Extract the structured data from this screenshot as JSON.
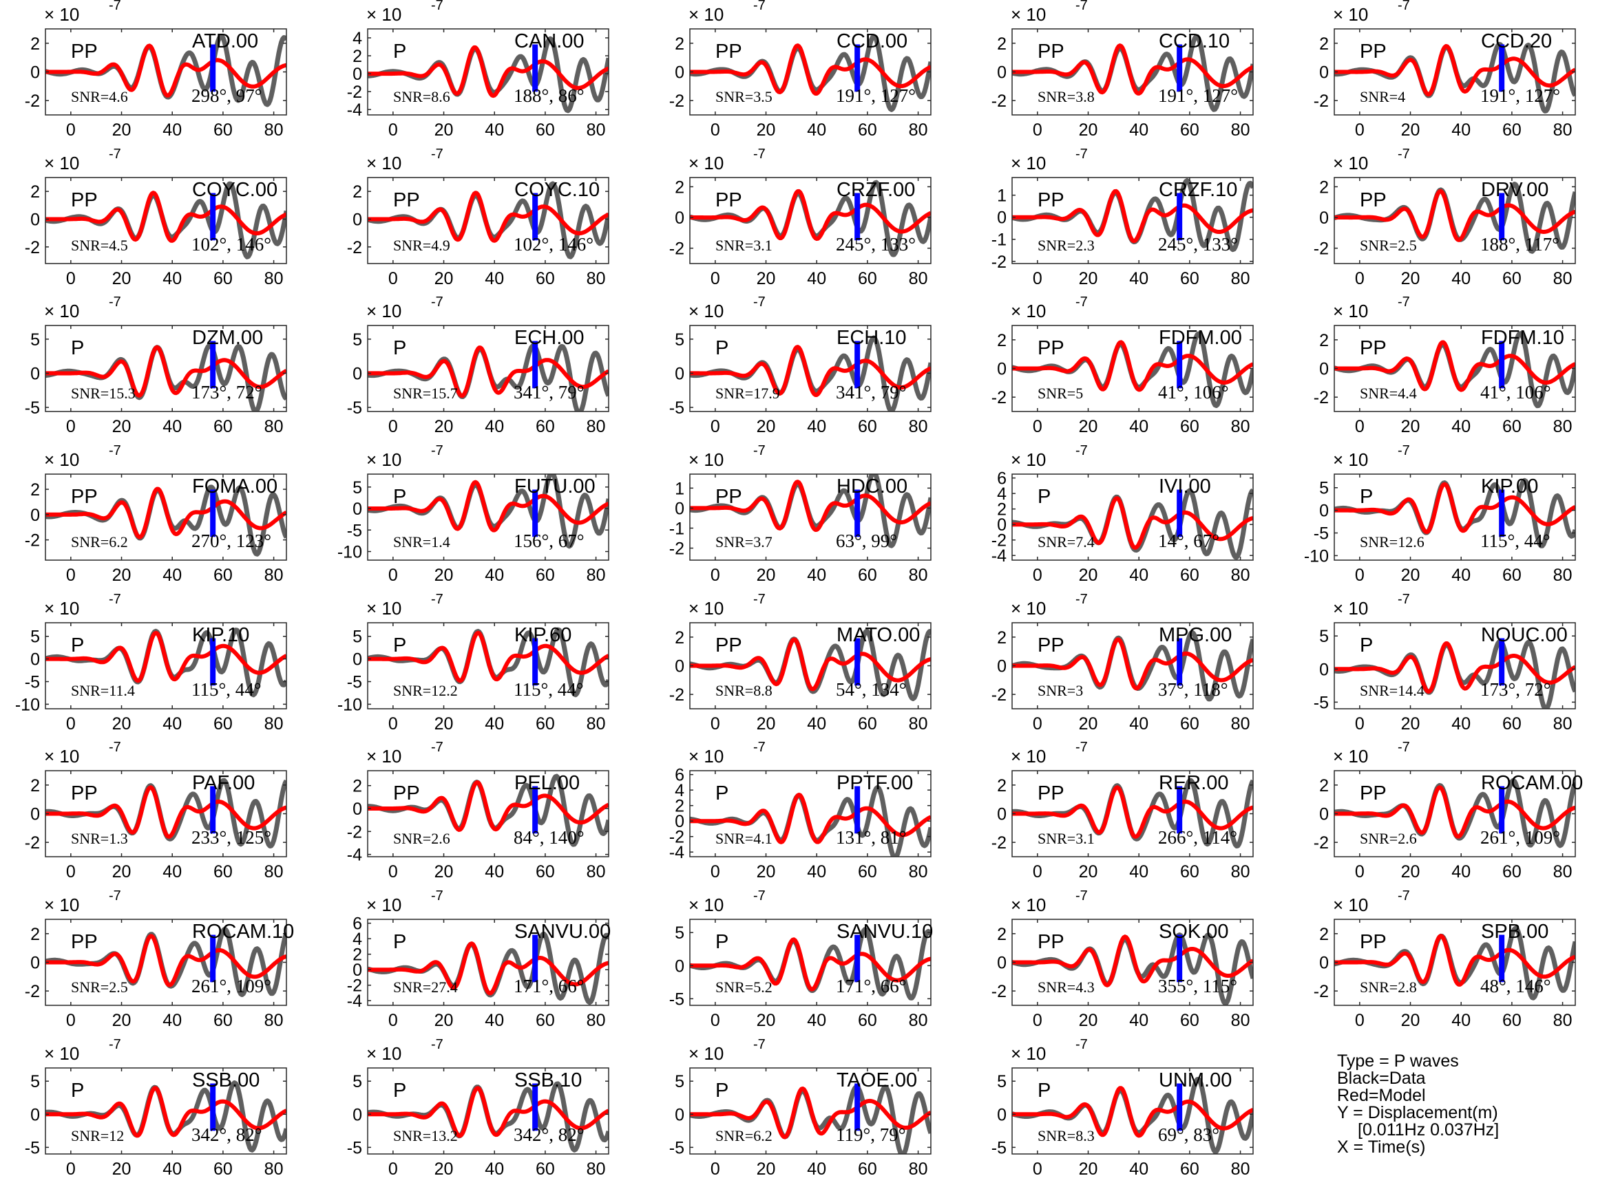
{
  "figure": {
    "scale_prefix": "× 10",
    "scale_exponent": "-7",
    "xticks": [
      "0",
      "20",
      "40",
      "60",
      "80"
    ],
    "xlim": [
      -10,
      85
    ],
    "colors": {
      "data": "#5f5f5f",
      "model": "#ff0000",
      "marker": "#0000ff",
      "axis": "#262626"
    }
  },
  "chart_data": [
    {
      "station": "ATD.00",
      "phase": "PP",
      "snr": "SNR=4.6",
      "azimuth": "298°",
      "distance": "97°",
      "yticks": [
        "-2",
        "0",
        "2"
      ],
      "ylim": [
        -3,
        3
      ]
    },
    {
      "station": "CAN.00",
      "phase": "P",
      "snr": "SNR=8.6",
      "azimuth": "188°",
      "distance": "86°",
      "yticks": [
        "-4",
        "-2",
        "0",
        "2",
        "4"
      ],
      "ylim": [
        -4.6,
        5
      ]
    },
    {
      "station": "CCD.00",
      "phase": "PP",
      "snr": "SNR=3.5",
      "azimuth": "191°",
      "distance": "127°",
      "yticks": [
        "-2",
        "0",
        "2"
      ],
      "ylim": [
        -3,
        3
      ]
    },
    {
      "station": "CCD.10",
      "phase": "PP",
      "snr": "SNR=3.8",
      "azimuth": "191°",
      "distance": "127°",
      "yticks": [
        "-2",
        "0",
        "2"
      ],
      "ylim": [
        -3,
        3
      ]
    },
    {
      "station": "CCD.20",
      "phase": "PP",
      "snr": "SNR=4",
      "azimuth": "191°",
      "distance": "127°",
      "yticks": [
        "-2",
        "0",
        "2"
      ],
      "ylim": [
        -3,
        3
      ]
    },
    {
      "station": "COYC.00",
      "phase": "PP",
      "snr": "SNR=4.5",
      "azimuth": "102°",
      "distance": "146°",
      "yticks": [
        "-2",
        "0",
        "2"
      ],
      "ylim": [
        -3.2,
        3
      ]
    },
    {
      "station": "COYC.10",
      "phase": "PP",
      "snr": "SNR=4.9",
      "azimuth": "102°",
      "distance": "146°",
      "yticks": [
        "-2",
        "0",
        "2"
      ],
      "ylim": [
        -3.2,
        3
      ]
    },
    {
      "station": "CRZF.00",
      "phase": "PP",
      "snr": "SNR=3.1",
      "azimuth": "245°",
      "distance": "133°",
      "yticks": [
        "-2",
        "0",
        "2"
      ],
      "ylim": [
        -3,
        2.6
      ]
    },
    {
      "station": "CRZF.10",
      "phase": "PP",
      "snr": "SNR=2.3",
      "azimuth": "245°",
      "distance": "133°",
      "yticks": [
        "-2",
        "-1",
        "0",
        "1"
      ],
      "ylim": [
        -2.1,
        1.8
      ]
    },
    {
      "station": "DRV.00",
      "phase": "PP",
      "snr": "SNR=2.5",
      "azimuth": "188°",
      "distance": "117°",
      "yticks": [
        "-2",
        "0",
        "2"
      ],
      "ylim": [
        -3,
        2.6
      ]
    },
    {
      "station": "DZM.00",
      "phase": "P",
      "snr": "SNR=15.3",
      "azimuth": "173°",
      "distance": "72°",
      "yticks": [
        "-5",
        "0",
        "5"
      ],
      "ylim": [
        -5.6,
        7
      ]
    },
    {
      "station": "ECH.00",
      "phase": "P",
      "snr": "SNR=15.7",
      "azimuth": "341°",
      "distance": "79°",
      "yticks": [
        "-5",
        "0",
        "5"
      ],
      "ylim": [
        -5.6,
        7
      ]
    },
    {
      "station": "ECH.10",
      "phase": "P",
      "snr": "SNR=17.9",
      "azimuth": "341°",
      "distance": "79°",
      "yticks": [
        "-5",
        "0",
        "5"
      ],
      "ylim": [
        -5.6,
        7
      ]
    },
    {
      "station": "FDFM.00",
      "phase": "PP",
      "snr": "SNR=5",
      "azimuth": "41°",
      "distance": "106°",
      "yticks": [
        "-2",
        "0",
        "2"
      ],
      "ylim": [
        -3,
        3
      ]
    },
    {
      "station": "FDFM.10",
      "phase": "PP",
      "snr": "SNR=4.4",
      "azimuth": "41°",
      "distance": "106°",
      "yticks": [
        "-2",
        "0",
        "2"
      ],
      "ylim": [
        -3,
        3
      ]
    },
    {
      "station": "FOMA.00",
      "phase": "PP",
      "snr": "SNR=6.2",
      "azimuth": "270°",
      "distance": "123°",
      "yticks": [
        "-2",
        "0",
        "2"
      ],
      "ylim": [
        -3.6,
        3.2
      ]
    },
    {
      "station": "FUTU.00",
      "phase": "P",
      "snr": "SNR=1.4",
      "azimuth": "156°",
      "distance": "67°",
      "yticks": [
        "-10",
        "-5",
        "0",
        "5"
      ],
      "ylim": [
        -12,
        8
      ]
    },
    {
      "station": "HDC.00",
      "phase": "PP",
      "snr": "SNR=3.7",
      "azimuth": "63°",
      "distance": "99°",
      "yticks": [
        "-2",
        "-1",
        "0",
        "1"
      ],
      "ylim": [
        -2.6,
        1.7
      ]
    },
    {
      "station": "IVI.00",
      "phase": "P",
      "snr": "SNR=7.4",
      "azimuth": "14°",
      "distance": "67°",
      "yticks": [
        "-4",
        "-2",
        "0",
        "2",
        "4",
        "6"
      ],
      "ylim": [
        -4.6,
        6.5
      ]
    },
    {
      "station": "KIP.00",
      "phase": "P",
      "snr": "SNR=12.6",
      "azimuth": "115°",
      "distance": "44°",
      "yticks": [
        "-10",
        "-5",
        "0",
        "5"
      ],
      "ylim": [
        -11,
        8
      ]
    },
    {
      "station": "KIP.10",
      "phase": "P",
      "snr": "SNR=11.4",
      "azimuth": "115°",
      "distance": "44°",
      "yticks": [
        "-10",
        "-5",
        "0",
        "5"
      ],
      "ylim": [
        -11,
        8
      ]
    },
    {
      "station": "KIP.60",
      "phase": "P",
      "snr": "SNR=12.2",
      "azimuth": "115°",
      "distance": "44°",
      "yticks": [
        "-10",
        "-5",
        "0",
        "5"
      ],
      "ylim": [
        -11,
        8
      ]
    },
    {
      "station": "MATO.00",
      "phase": "PP",
      "snr": "SNR=8.8",
      "azimuth": "54°",
      "distance": "134°",
      "yticks": [
        "-2",
        "0",
        "2"
      ],
      "ylim": [
        -3,
        3
      ]
    },
    {
      "station": "MPG.00",
      "phase": "PP",
      "snr": "SNR=3",
      "azimuth": "37°",
      "distance": "118°",
      "yticks": [
        "-2",
        "0",
        "2"
      ],
      "ylim": [
        -3,
        3
      ]
    },
    {
      "station": "NOUC.00",
      "phase": "P",
      "snr": "SNR=14.4",
      "azimuth": "173°",
      "distance": "72°",
      "yticks": [
        "-5",
        "0",
        "5"
      ],
      "ylim": [
        -6,
        7
      ]
    },
    {
      "station": "PAF.00",
      "phase": "PP",
      "snr": "SNR=1.3",
      "azimuth": "233°",
      "distance": "125°",
      "yticks": [
        "-2",
        "0",
        "2"
      ],
      "ylim": [
        -3,
        3
      ]
    },
    {
      "station": "PEL.00",
      "phase": "PP",
      "snr": "SNR=2.6",
      "azimuth": "84°",
      "distance": "140°",
      "yticks": [
        "-4",
        "-2",
        "0",
        "2"
      ],
      "ylim": [
        -4.2,
        3.3
      ]
    },
    {
      "station": "PPTF.00",
      "phase": "P",
      "snr": "SNR=4.1",
      "azimuth": "131°",
      "distance": "81°",
      "yticks": [
        "-4",
        "-2",
        "0",
        "2",
        "4",
        "6"
      ],
      "ylim": [
        -4.6,
        6.5
      ]
    },
    {
      "station": "RER.00",
      "phase": "PP",
      "snr": "SNR=3.1",
      "azimuth": "266°",
      "distance": "114°",
      "yticks": [
        "-2",
        "0",
        "2"
      ],
      "ylim": [
        -3,
        3
      ]
    },
    {
      "station": "ROCAM.00",
      "phase": "PP",
      "snr": "SNR=2.6",
      "azimuth": "261°",
      "distance": "109°",
      "yticks": [
        "-2",
        "0",
        "2"
      ],
      "ylim": [
        -3,
        3
      ]
    },
    {
      "station": "ROCAM.10",
      "phase": "PP",
      "snr": "SNR=2.5",
      "azimuth": "261°",
      "distance": "109°",
      "yticks": [
        "-2",
        "0",
        "2"
      ],
      "ylim": [
        -3,
        3
      ]
    },
    {
      "station": "SANVU.00",
      "phase": "P",
      "snr": "SNR=27.4",
      "azimuth": "171°",
      "distance": "66°",
      "yticks": [
        "-4",
        "-2",
        "0",
        "2",
        "4",
        "6"
      ],
      "ylim": [
        -4.6,
        6.5
      ]
    },
    {
      "station": "SANVU.10",
      "phase": "P",
      "snr": "SNR=5.2",
      "azimuth": "171°",
      "distance": "66°",
      "yticks": [
        "-5",
        "0",
        "5"
      ],
      "ylim": [
        -6,
        7
      ]
    },
    {
      "station": "SOK.00",
      "phase": "PP",
      "snr": "SNR=4.3",
      "azimuth": "355°",
      "distance": "115°",
      "yticks": [
        "-2",
        "0",
        "2"
      ],
      "ylim": [
        -3,
        3
      ]
    },
    {
      "station": "SPB.00",
      "phase": "PP",
      "snr": "SNR=2.8",
      "azimuth": "48°",
      "distance": "146°",
      "yticks": [
        "-2",
        "0",
        "2"
      ],
      "ylim": [
        -3,
        3
      ]
    },
    {
      "station": "SSB.00",
      "phase": "P",
      "snr": "SNR=12",
      "azimuth": "342°",
      "distance": "82°",
      "yticks": [
        "-5",
        "0",
        "5"
      ],
      "ylim": [
        -6,
        7
      ]
    },
    {
      "station": "SSB.10",
      "phase": "P",
      "snr": "SNR=13.2",
      "azimuth": "342°",
      "distance": "82°",
      "yticks": [
        "-5",
        "0",
        "5"
      ],
      "ylim": [
        -6,
        7
      ]
    },
    {
      "station": "TAOE.00",
      "phase": "P",
      "snr": "SNR=6.2",
      "azimuth": "119°",
      "distance": "79°",
      "yticks": [
        "-5",
        "0",
        "5"
      ],
      "ylim": [
        -6,
        7
      ]
    },
    {
      "station": "UNM.00",
      "phase": "P",
      "snr": "SNR=8.3",
      "azimuth": "69°",
      "distance": "83°",
      "yticks": [
        "-5",
        "0",
        "5"
      ],
      "ylim": [
        -6,
        7
      ]
    }
  ],
  "legend": {
    "type": "Type = P waves",
    "black": "Black=Data",
    "red": "Red=Model",
    "y": "Y = Displacement(m)",
    "band": "[0.011Hz 0.037Hz]",
    "x": "X = Time(s)"
  }
}
